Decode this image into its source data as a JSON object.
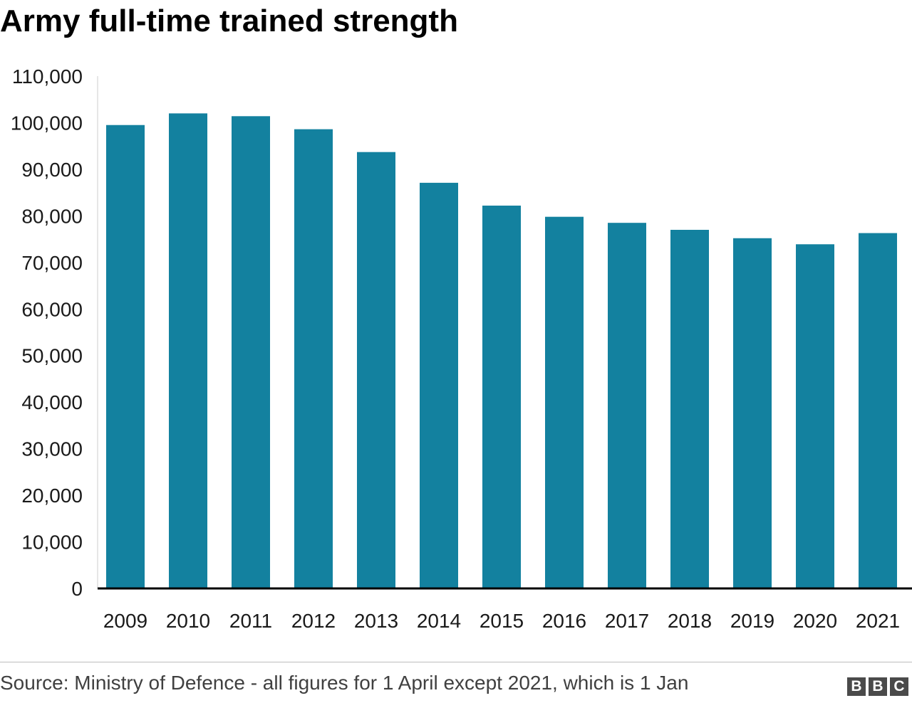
{
  "title": "Army full-time trained strength",
  "source": "Source: Ministry of Defence - all figures for 1 April except 2021, which is 1 Jan",
  "logo": {
    "letters": [
      "B",
      "B",
      "C"
    ]
  },
  "colors": {
    "bar": "#13819f",
    "axis": "#000000",
    "text": "#1a1a1a"
  },
  "chart_data": {
    "type": "bar",
    "title": "Army full-time trained strength",
    "xlabel": "",
    "ylabel": "",
    "categories": [
      "2009",
      "2010",
      "2011",
      "2012",
      "2013",
      "2014",
      "2015",
      "2016",
      "2017",
      "2018",
      "2019",
      "2020",
      "2021"
    ],
    "values": [
      99500,
      102000,
      101400,
      98600,
      93700,
      87100,
      82200,
      79800,
      78500,
      77000,
      75200,
      73900,
      76300
    ],
    "ylim": [
      0,
      110000
    ],
    "yticks": [
      "0",
      "10,000",
      "20,000",
      "30,000",
      "40,000",
      "50,000",
      "60,000",
      "70,000",
      "80,000",
      "90,000",
      "100,000",
      "110,000"
    ],
    "grid": false,
    "legend": "none"
  }
}
